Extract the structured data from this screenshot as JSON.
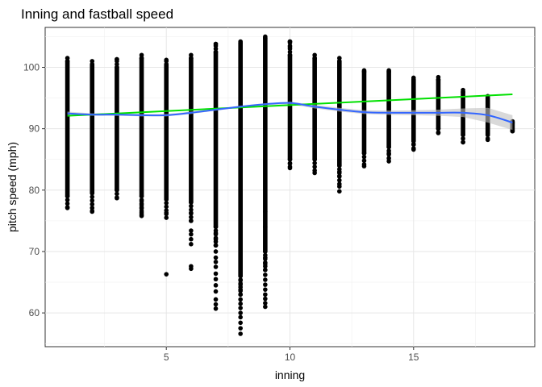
{
  "chart_data": {
    "type": "scatter",
    "title": "Inning and fastball speed",
    "xlabel": "inning",
    "ylabel": "pitch speed (mph)",
    "xlim": [
      0.1,
      19.9
    ],
    "ylim": [
      54.5,
      106.5
    ],
    "xticks": [
      5,
      10,
      15
    ],
    "yticks": [
      60,
      70,
      80,
      90,
      100
    ],
    "grid": true,
    "columns": [
      {
        "inning": 1,
        "min": 77.0,
        "max": 101.5,
        "low_dense": 79,
        "high_dense": 101,
        "outliers": [
          77.1
        ]
      },
      {
        "inning": 2,
        "min": 76.5,
        "max": 101.0,
        "low_dense": 79.5,
        "high_dense": 100.5,
        "outliers": [
          76.6
        ]
      },
      {
        "inning": 3,
        "min": 78.6,
        "max": 101.3,
        "low_dense": 80,
        "high_dense": 100,
        "outliers": [
          78.7,
          101.3
        ]
      },
      {
        "inning": 4,
        "min": 75.7,
        "max": 102.0,
        "low_dense": 79,
        "high_dense": 101.5,
        "outliers": [
          75.8,
          76.3,
          77.0,
          77.6,
          78.2
        ]
      },
      {
        "inning": 5,
        "min": 66.3,
        "max": 101.2,
        "low_dense": 78.5,
        "high_dense": 100.5,
        "outliers": [
          66.3,
          76.3
        ]
      },
      {
        "inning": 6,
        "min": 67.2,
        "max": 102.0,
        "low_dense": 78,
        "high_dense": 101.5,
        "outliers": [
          67.2,
          67.6,
          71.2,
          72.0,
          72.8,
          73.4,
          75.0,
          76.3
        ]
      },
      {
        "inning": 7,
        "min": 60.6,
        "max": 103.8,
        "low_dense": 74,
        "high_dense": 102.5,
        "outliers": [
          60.7,
          61.4,
          62.2,
          63.5,
          64.5,
          65.5,
          66.4,
          67.5,
          68.3,
          69.0,
          70.0,
          71.0,
          72.0,
          73.0,
          103.8
        ]
      },
      {
        "inning": 8,
        "min": 56.5,
        "max": 104.2,
        "low_dense": 66,
        "high_dense": 104,
        "outliers": [
          56.6,
          57.5,
          58.4,
          59.3,
          60.0,
          60.8,
          61.5,
          62.2,
          63.0,
          63.8,
          64.6,
          65.3
        ]
      },
      {
        "inning": 9,
        "min": 61.0,
        "max": 105.0,
        "low_dense": 70,
        "high_dense": 104.8,
        "outliers": [
          61.0,
          61.6,
          62.3,
          63.0,
          63.8,
          64.6,
          65.4,
          66.2,
          67.0,
          68.0,
          69.0,
          74.0,
          76.5
        ]
      },
      {
        "inning": 10,
        "min": 83.5,
        "max": 104.2,
        "low_dense": 85,
        "high_dense": 102,
        "outliers": [
          83.6,
          84.3,
          103.3,
          104.2
        ]
      },
      {
        "inning": 11,
        "min": 82.8,
        "max": 102.0,
        "low_dense": 85,
        "high_dense": 101.5,
        "outliers": [
          82.8
        ]
      },
      {
        "inning": 12,
        "min": 79.8,
        "max": 101.5,
        "low_dense": 84,
        "high_dense": 101,
        "outliers": [
          79.8,
          80.6,
          82.3,
          83.0
        ]
      },
      {
        "inning": 13,
        "min": 83.9,
        "max": 99.5,
        "low_dense": 86,
        "high_dense": 99.3,
        "outliers": [
          83.9
        ]
      },
      {
        "inning": 14,
        "min": 84.7,
        "max": 99.5,
        "low_dense": 87,
        "high_dense": 99.3,
        "outliers": [
          84.7,
          86.0
        ]
      },
      {
        "inning": 15,
        "min": 86.5,
        "max": 98.3,
        "low_dense": 88,
        "high_dense": 98,
        "outliers": [
          86.6,
          87.5
        ]
      },
      {
        "inning": 16,
        "min": 89.3,
        "max": 98.4,
        "low_dense": 90,
        "high_dense": 98,
        "outliers": [
          89.3
        ]
      },
      {
        "inning": 17,
        "min": 87.8,
        "max": 96.3,
        "low_dense": 89,
        "high_dense": 96,
        "outliers": [
          87.8
        ]
      },
      {
        "inning": 18,
        "min": 88.2,
        "max": 95.3,
        "low_dense": 89,
        "high_dense": 95,
        "outliers": [
          88.2
        ]
      },
      {
        "inning": 19,
        "min": 89.3,
        "max": 91.2,
        "low_dense": 89.6,
        "high_dense": 91,
        "outliers": []
      }
    ],
    "series": [
      {
        "type": "linear-fit",
        "color": "#00e000",
        "x": [
          1,
          19
        ],
        "y": [
          92.1,
          95.6
        ]
      },
      {
        "type": "loess",
        "color": "#3366ff",
        "band_color": "#bfbfbf",
        "x": [
          1,
          2,
          3,
          4,
          5,
          6,
          7,
          8,
          9,
          10,
          11,
          12,
          13,
          14,
          15,
          16,
          17,
          18,
          19
        ],
        "y": [
          92.5,
          92.3,
          92.3,
          92.2,
          92.2,
          92.6,
          93.1,
          93.6,
          94.0,
          94.2,
          93.6,
          93.1,
          92.7,
          92.6,
          92.6,
          92.6,
          92.6,
          92.2,
          91.0
        ],
        "band_lower": [
          92.2,
          92.1,
          92.1,
          92.0,
          92.0,
          92.4,
          92.95,
          93.45,
          93.85,
          94.0,
          93.3,
          92.8,
          92.4,
          92.25,
          92.2,
          92.1,
          91.9,
          91.0,
          89.8
        ],
        "band_upper": [
          92.8,
          92.5,
          92.5,
          92.4,
          92.4,
          92.8,
          93.25,
          93.75,
          94.15,
          94.4,
          93.9,
          93.4,
          93.0,
          92.95,
          93.0,
          93.1,
          93.3,
          93.4,
          92.2
        ]
      }
    ]
  }
}
